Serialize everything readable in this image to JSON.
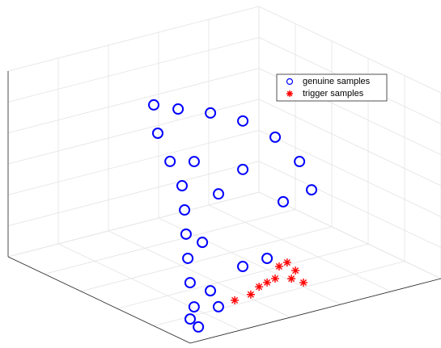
{
  "chart_data": {
    "type": "scatter3d",
    "xlim": [
      0,
      10
    ],
    "ylim": [
      0,
      10
    ],
    "zlim": [
      0,
      10
    ],
    "grid": true,
    "legend": "upper-right",
    "series": [
      {
        "name": "genuine samples",
        "color": "#0000ff",
        "marker": "circle",
        "x": [
          0.5,
          0.5,
          0.5,
          0.5,
          0.5,
          0.5,
          0.5,
          2,
          7,
          7,
          7,
          7,
          7,
          7,
          7,
          7,
          7,
          7,
          7,
          7,
          0.5,
          0.5,
          0.5,
          0.5,
          0.5,
          0
        ],
        "y": [
          0.69,
          0.52,
          0.36,
          0.27,
          0.2,
          0.14,
          0.04,
          0.65,
          3.63,
          4.6,
          5.89,
          7.18,
          8.47,
          9.44,
          9.92,
          3.79,
          5.24,
          7.18,
          8.79,
          6.21,
          0.85,
          2.46,
          3.43,
          1.17,
          1.49,
          0
        ],
        "z": [
          0.4,
          1.54,
          2.9,
          4.24,
          5.57,
          6.89,
          8.23,
          8.63,
          8.31,
          7.75,
          7.09,
          6.21,
          4.89,
          3.24,
          1.55,
          6.73,
          4.7,
          3.6,
          1.3,
          2.62,
          4.9,
          3.04,
          3.14,
          2.18,
          1.21,
          1.3
        ]
      },
      {
        "name": "trigger samples",
        "color": "#ff0000",
        "marker": "star",
        "x": [
          0.5,
          0.5,
          0.5,
          0.5,
          0.5,
          0.5,
          0.5,
          0.5,
          0.5,
          0.5
        ],
        "y": [
          3.91,
          4.4,
          4.88,
          3.43,
          2.78,
          2.14,
          4.23,
          3.75,
          3.11,
          4.56
        ],
        "z": [
          2.54,
          1.71,
          1.33,
          1.84,
          1.42,
          1.33,
          2.64,
          1.94,
          1.72,
          2.09
        ]
      }
    ]
  }
}
